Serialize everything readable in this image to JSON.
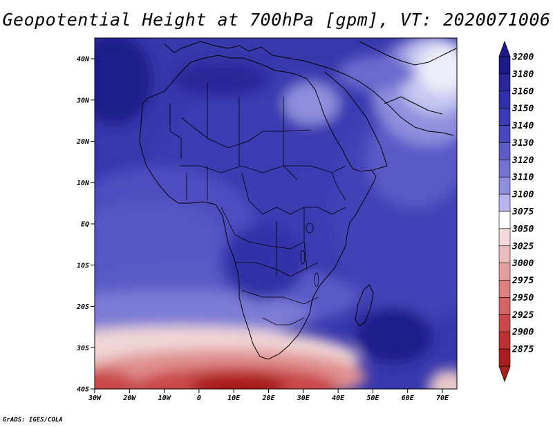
{
  "title": "Geopotential Height at 700hPa [gpm], VT: 2020071006",
  "credit": "GrADS: IGES/COLA",
  "map": {
    "lat_labels": [
      "40N",
      "30N",
      "20N",
      "10N",
      "EQ",
      "10S",
      "20S",
      "30S",
      "40S"
    ],
    "lon_labels": [
      "30W",
      "20W",
      "10W",
      "0",
      "10E",
      "20E",
      "30E",
      "40E",
      "50E",
      "60E",
      "70E"
    ]
  },
  "colorbar": {
    "levels": [
      "3200",
      "3180",
      "3160",
      "3150",
      "3140",
      "3130",
      "3120",
      "3110",
      "3100",
      "3075",
      "3050",
      "3025",
      "3000",
      "2975",
      "2950",
      "2925",
      "2900",
      "2875"
    ],
    "colors": [
      "#1e1a8a",
      "#2a2899",
      "#3030a8",
      "#3a3ab2",
      "#4848bd",
      "#5c5cc8",
      "#7373d3",
      "#8f8fde",
      "#b6b6ec",
      "#ffffff",
      "#f4dada",
      "#edbcbc",
      "#e49e9e",
      "#dc8080",
      "#d46464",
      "#c94a4a",
      "#bb3232",
      "#a81f1f"
    ]
  }
}
